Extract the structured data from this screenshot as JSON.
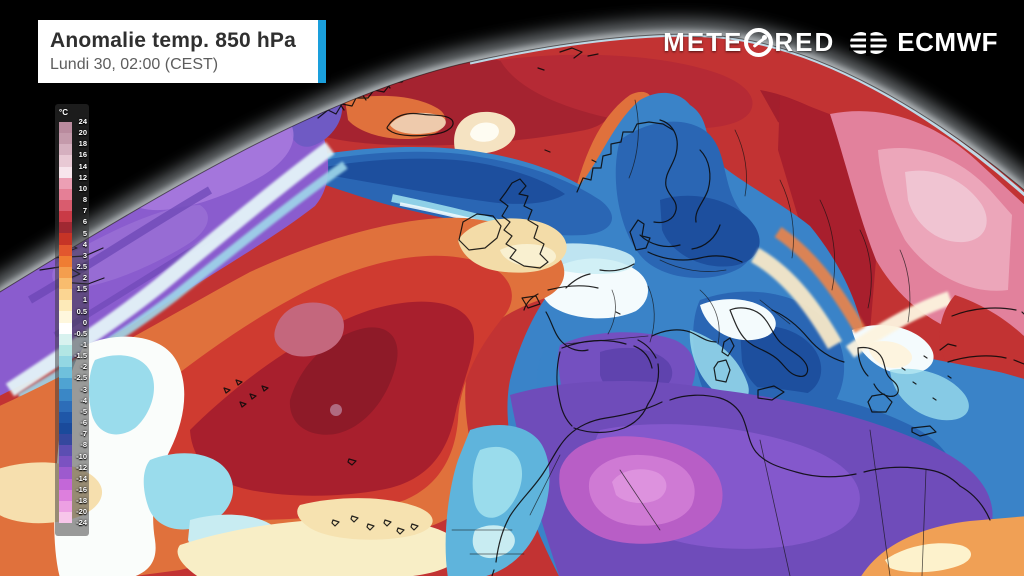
{
  "header": {
    "title": "Anomalie temp. 850 hPa",
    "datetime": "Lundi 30, 02:00 (CEST)",
    "accent_color": "#1a9fdc"
  },
  "branding": {
    "meteored": "METEORED",
    "meteored_prefix": "METE",
    "meteored_suffix": "RED",
    "ecmwf": "ECMWF"
  },
  "colorbar": {
    "unit": "°C",
    "tick_labels": [
      "24",
      "20",
      "18",
      "16",
      "14",
      "12",
      "10",
      "8",
      "7",
      "6",
      "5",
      "4",
      "3",
      "2.5",
      "2",
      "1.5",
      "1",
      "0.5",
      "0",
      "-0.5",
      "-1",
      "-1.5",
      "-2",
      "-2.5",
      "-3",
      "-4",
      "-5",
      "-6",
      "-7",
      "-8",
      "-10",
      "-12",
      "-14",
      "-16",
      "-18",
      "-20",
      "-24"
    ],
    "segment_colors": [
      "#b98b9e",
      "#c49aab",
      "#d5b0bf",
      "#e8c9d4",
      "#f7e5ec",
      "#ec9fb4",
      "#e57f96",
      "#d95c6e",
      "#c93a46",
      "#a02832",
      "#c63426",
      "#e2572e",
      "#ef7d33",
      "#f49e4e",
      "#f8bc6e",
      "#fbd592",
      "#fdeab8",
      "#fef7dd",
      "#ffffff",
      "#d8f2ef",
      "#b2e6e4",
      "#93d7e3",
      "#6fc0dc",
      "#4fa3d2",
      "#3a87c6",
      "#2d6db8",
      "#1f57a8",
      "#1a4a9b",
      "#35489e",
      "#5c4eb2",
      "#7b52c1",
      "#9d5ace",
      "#c367d8",
      "#dd7fdd",
      "#eda0e3",
      "#f7c6ea"
    ]
  },
  "map": {
    "description": "Anomalie de température à 850 hPa — Europe / Atlantique Nord (vue globe)",
    "palette": {
      "space": "#000000",
      "limb_glow": "#cdd6dc",
      "base_red": "#c23333",
      "north_dark_red": "#a52330",
      "orange": "#e0713c",
      "cream": "#f5e3c2",
      "pink_east": "#e2819c",
      "pink_light": "#eca6ba",
      "blue": "#3a83c8",
      "dark_blue": "#2a66b4",
      "navy": "#1d4f9e",
      "cyan": "#9adcec",
      "white_zone": "#f4fbfd",
      "purple_nw": "#8a5cce",
      "africa_purple": "#6f4cba",
      "magenta": "#b85ec6",
      "atlantic_red": "#cf3b30",
      "atlantic_dark_red": "#a81f2d",
      "maroon": "#8e1a28",
      "rose": "#c4677d",
      "warm_corner": "#f0a055"
    }
  }
}
